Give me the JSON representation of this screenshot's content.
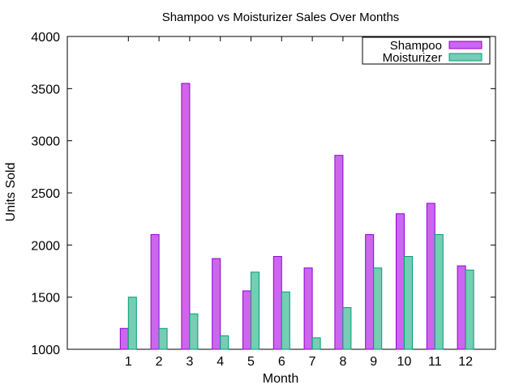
{
  "chart_data": {
    "type": "bar",
    "title": "Shampoo vs Moisturizer Sales Over Months",
    "xlabel": "Month",
    "ylabel": "Units Sold",
    "categories": [
      "1",
      "2",
      "3",
      "4",
      "5",
      "6",
      "7",
      "8",
      "9",
      "10",
      "11",
      "12"
    ],
    "series": [
      {
        "name": "Shampoo",
        "color": "#cc66ee",
        "stroke": "#9400d3",
        "values": [
          1200,
          2100,
          3550,
          1870,
          1560,
          1890,
          1780,
          2860,
          2100,
          2300,
          2400,
          1800
        ]
      },
      {
        "name": "Moisturizer",
        "color": "#76cdb4",
        "stroke": "#009e73",
        "values": [
          1500,
          1200,
          1340,
          1130,
          1740,
          1550,
          1110,
          1400,
          1780,
          1890,
          2100,
          1760
        ]
      }
    ],
    "ylim": [
      1000,
      4000
    ],
    "yticks": [
      "1000",
      "1500",
      "2000",
      "2500",
      "3000",
      "3500",
      "4000"
    ],
    "grid": false,
    "legend_position": "top-right"
  }
}
